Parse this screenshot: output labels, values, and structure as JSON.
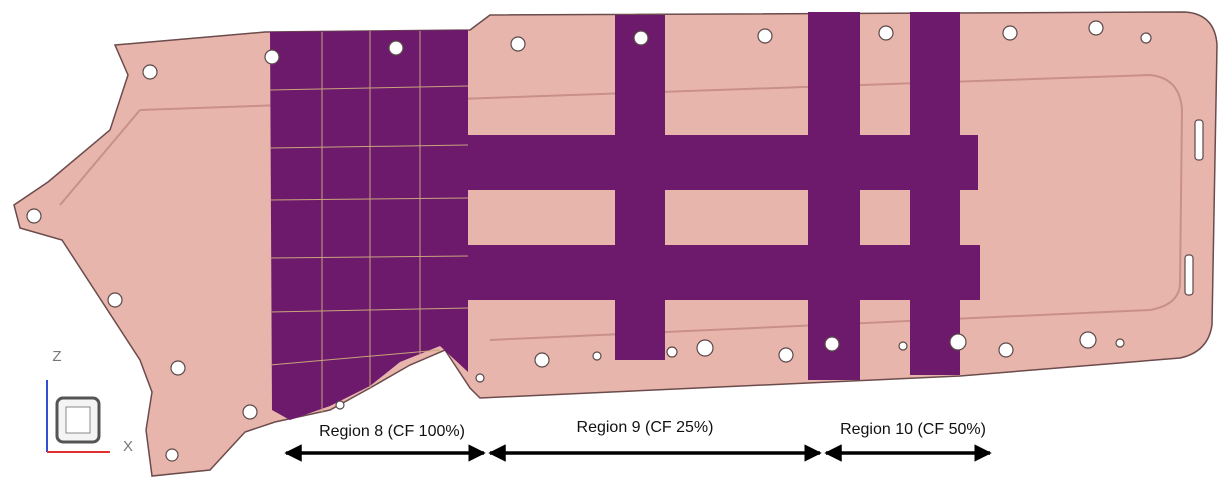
{
  "regions": [
    {
      "label": "Region 8 (CF 100%)"
    },
    {
      "label": "Region 9 (CF 25%)"
    },
    {
      "label": "Region 10 (CF 50%)"
    }
  ],
  "axes": {
    "vertical": "Z",
    "horizontal": "X"
  }
}
